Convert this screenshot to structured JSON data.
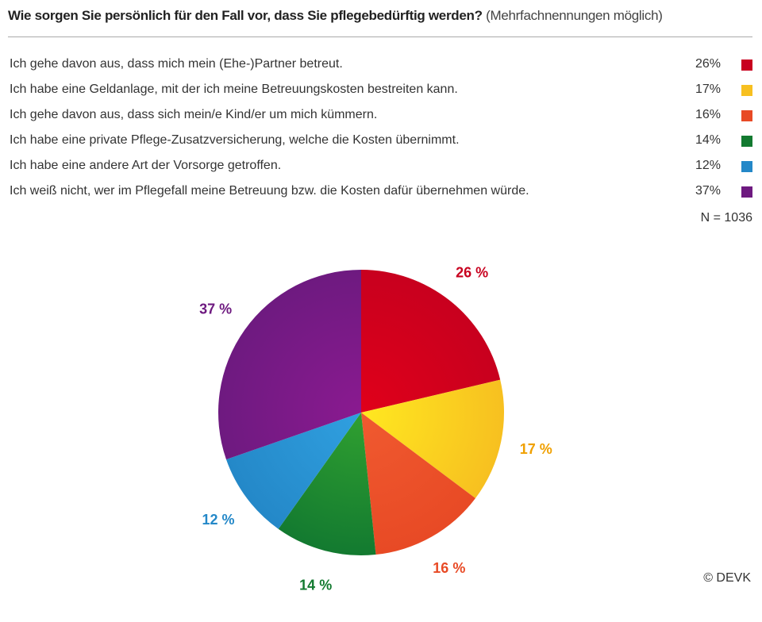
{
  "title": {
    "bold": "Wie sorgen Sie persönlich für den Fall vor, dass Sie pflegebedürftig werden?",
    "sub": "(Mehrfachnennungen möglich)"
  },
  "n_label": "N = 1036",
  "copyright": "© DEVK",
  "chart_data": {
    "type": "pie",
    "title": "Wie sorgen Sie persönlich für den Fall vor, dass Sie pflegebedürftig werden? (Mehrfachnennungen möglich)",
    "categories": [
      "Ich gehe davon aus, dass mich mein (Ehe-)Partner betreut.",
      "Ich habe eine Geldanlage, mit der ich meine Betreuungskosten bestreiten kann.",
      "Ich gehe davon aus, dass sich mein/e Kind/er um mich kümmern.",
      "Ich habe eine private Pflege-Zusatzversicherung, welche die Kosten übernimmt.",
      "Ich habe eine andere Art der Vorsorge getroffen.",
      "Ich weiß nicht, wer im Pflegefall meine Betreuung bzw. die Kosten dafür übernehmen würde."
    ],
    "values": [
      26,
      17,
      16,
      14,
      12,
      37
    ],
    "value_labels": [
      "26%",
      "17%",
      "16%",
      "14%",
      "12%",
      "37%"
    ],
    "slice_labels": [
      "26 %",
      "17 %",
      "16 %",
      "14 %",
      "12 %",
      "37 %"
    ],
    "colors": [
      "#c8001e",
      "#f7c020",
      "#e84a25",
      "#137a30",
      "#2488c8",
      "#6e1a80"
    ],
    "center_colors": [
      "#e0001a",
      "#ffe820",
      "#f05a30",
      "#30a030",
      "#30a0e0",
      "#8a1a90"
    ],
    "label_colors": [
      "#c8001e",
      "#f0a000",
      "#e84a25",
      "#137a30",
      "#2488c8",
      "#6e1a80"
    ],
    "legend": "top-list"
  }
}
